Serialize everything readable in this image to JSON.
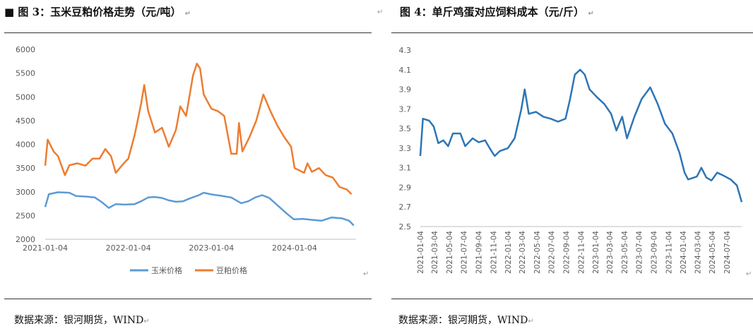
{
  "left_panel": {
    "title_prefix": "■",
    "title": "图 3：玉米豆粕价格走势（元/吨）",
    "source": "数据来源：银河期货，WIND",
    "paragraph_mark": "↵"
  },
  "right_panel": {
    "title": "图 4：单斤鸡蛋对应饲料成本（元/斤）",
    "source": "数据来源：银河期货，WIND",
    "paragraph_mark": "↵"
  },
  "chart_data": [
    {
      "type": "line",
      "title": "",
      "xlabel": "",
      "ylabel": "",
      "x_type": "date",
      "xlim": [
        "2021-01-04",
        "2024-09-30"
      ],
      "ylim": [
        2000,
        6000
      ],
      "x_tick_labels": [
        "2021-01-04",
        "2022-01-04",
        "2023-01-04",
        "2024-01-04"
      ],
      "y_tick_labels": [
        "2000",
        "2500",
        "3000",
        "3500",
        "4000",
        "4500",
        "5000",
        "5500",
        "6000"
      ],
      "grid": false,
      "legend": "bottom",
      "series": [
        {
          "name": "玉米价格",
          "color": "#5b9bd5",
          "points": [
            [
              "2021-01-04",
              2680
            ],
            [
              "2021-01-20",
              2950
            ],
            [
              "2021-03-01",
              2990
            ],
            [
              "2021-04-20",
              2980
            ],
            [
              "2021-05-20",
              2910
            ],
            [
              "2021-07-01",
              2900
            ],
            [
              "2021-08-10",
              2880
            ],
            [
              "2021-09-10",
              2780
            ],
            [
              "2021-10-10",
              2660
            ],
            [
              "2021-11-10",
              2740
            ],
            [
              "2021-12-20",
              2730
            ],
            [
              "2022-02-01",
              2740
            ],
            [
              "2022-03-01",
              2800
            ],
            [
              "2022-04-01",
              2880
            ],
            [
              "2022-05-01",
              2890
            ],
            [
              "2022-06-01",
              2870
            ],
            [
              "2022-07-01",
              2820
            ],
            [
              "2022-08-01",
              2790
            ],
            [
              "2022-09-01",
              2800
            ],
            [
              "2022-10-01",
              2860
            ],
            [
              "2022-11-10",
              2930
            ],
            [
              "2022-12-01",
              2980
            ],
            [
              "2023-01-10",
              2940
            ],
            [
              "2023-02-10",
              2920
            ],
            [
              "2023-04-01",
              2880
            ],
            [
              "2023-05-15",
              2760
            ],
            [
              "2023-06-15",
              2800
            ],
            [
              "2023-07-15",
              2880
            ],
            [
              "2023-08-15",
              2930
            ],
            [
              "2023-09-15",
              2870
            ],
            [
              "2023-10-20",
              2720
            ],
            [
              "2023-12-01",
              2540
            ],
            [
              "2024-01-01",
              2420
            ],
            [
              "2024-02-10",
              2430
            ],
            [
              "2024-03-15",
              2410
            ],
            [
              "2024-05-01",
              2390
            ],
            [
              "2024-06-15",
              2460
            ],
            [
              "2024-07-31",
              2440
            ],
            [
              "2024-08-31",
              2390
            ],
            [
              "2024-09-20",
              2290
            ]
          ]
        },
        {
          "name": "豆粕价格",
          "color": "#ed7d31",
          "points": [
            [
              "2021-01-04",
              3550
            ],
            [
              "2021-01-15",
              4100
            ],
            [
              "2021-02-10",
              3850
            ],
            [
              "2021-03-01",
              3750
            ],
            [
              "2021-04-01",
              3350
            ],
            [
              "2021-04-20",
              3560
            ],
            [
              "2021-05-25",
              3600
            ],
            [
              "2021-06-30",
              3550
            ],
            [
              "2021-07-31",
              3700
            ],
            [
              "2021-08-31",
              3700
            ],
            [
              "2021-09-25",
              3900
            ],
            [
              "2021-10-20",
              3750
            ],
            [
              "2021-11-10",
              3400
            ],
            [
              "2021-12-15",
              3600
            ],
            [
              "2022-01-04",
              3700
            ],
            [
              "2022-02-01",
              4200
            ],
            [
              "2022-03-01",
              4850
            ],
            [
              "2022-03-15",
              5250
            ],
            [
              "2022-04-01",
              4700
            ],
            [
              "2022-05-01",
              4250
            ],
            [
              "2022-06-01",
              4350
            ],
            [
              "2022-07-01",
              3950
            ],
            [
              "2022-08-01",
              4300
            ],
            [
              "2022-08-20",
              4800
            ],
            [
              "2022-09-15",
              4600
            ],
            [
              "2022-10-15",
              5450
            ],
            [
              "2022-11-01",
              5700
            ],
            [
              "2022-11-15",
              5600
            ],
            [
              "2022-12-01",
              5050
            ],
            [
              "2023-01-04",
              4750
            ],
            [
              "2023-02-01",
              4700
            ],
            [
              "2023-03-01",
              4600
            ],
            [
              "2023-04-01",
              3800
            ],
            [
              "2023-04-25",
              3800
            ],
            [
              "2023-05-05",
              4450
            ],
            [
              "2023-05-20",
              3850
            ],
            [
              "2023-06-20",
              4150
            ],
            [
              "2023-07-20",
              4500
            ],
            [
              "2023-08-20",
              5050
            ],
            [
              "2023-09-20",
              4700
            ],
            [
              "2023-10-20",
              4400
            ],
            [
              "2023-11-20",
              4150
            ],
            [
              "2023-12-20",
              3950
            ],
            [
              "2024-01-04",
              3500
            ],
            [
              "2024-02-15",
              3400
            ],
            [
              "2024-03-01",
              3600
            ],
            [
              "2024-03-20",
              3420
            ],
            [
              "2024-04-20",
              3500
            ],
            [
              "2024-05-20",
              3350
            ],
            [
              "2024-06-20",
              3300
            ],
            [
              "2024-07-20",
              3100
            ],
            [
              "2024-08-20",
              3050
            ],
            [
              "2024-09-10",
              2950
            ]
          ]
        }
      ]
    },
    {
      "type": "line",
      "title": "",
      "xlabel": "",
      "ylabel": "",
      "x_type": "date",
      "xlim": [
        "2021-01-04",
        "2024-09-04"
      ],
      "ylim": [
        2.5,
        4.3
      ],
      "x_tick_labels": [
        "2021-01-04",
        "2021-03-04",
        "2021-05-04",
        "2021-07-04",
        "2021-09-04",
        "2021-11-04",
        "2022-01-04",
        "2022-03-04",
        "2022-05-04",
        "2022-07-04",
        "2022-09-04",
        "2022-11-04",
        "2023-01-04",
        "2023-03-04",
        "2023-05-04",
        "2023-07-04",
        "2023-09-04",
        "2023-11-04",
        "2024-01-04",
        "2024-03-04",
        "2024-05-04",
        "2024-07-04"
      ],
      "y_tick_labels": [
        "2.5",
        "2.7",
        "2.9",
        "3.1",
        "3.3",
        "3.5",
        "3.7",
        "3.9",
        "4.1",
        "4.3"
      ],
      "grid": false,
      "legend": "none",
      "series": [
        {
          "color": "#2e75b6",
          "points": [
            [
              "2021-01-04",
              3.22
            ],
            [
              "2021-01-15",
              3.6
            ],
            [
              "2021-02-10",
              3.58
            ],
            [
              "2021-03-01",
              3.52
            ],
            [
              "2021-03-20",
              3.35
            ],
            [
              "2021-04-10",
              3.38
            ],
            [
              "2021-04-30",
              3.32
            ],
            [
              "2021-05-20",
              3.45
            ],
            [
              "2021-06-20",
              3.45
            ],
            [
              "2021-07-10",
              3.32
            ],
            [
              "2021-08-10",
              3.4
            ],
            [
              "2021-09-04",
              3.36
            ],
            [
              "2021-10-01",
              3.38
            ],
            [
              "2021-10-20",
              3.3
            ],
            [
              "2021-11-10",
              3.22
            ],
            [
              "2021-12-01",
              3.27
            ],
            [
              "2022-01-04",
              3.3
            ],
            [
              "2022-02-01",
              3.4
            ],
            [
              "2022-03-01",
              3.7
            ],
            [
              "2022-03-15",
              3.9
            ],
            [
              "2022-04-01",
              3.65
            ],
            [
              "2022-05-01",
              3.67
            ],
            [
              "2022-06-01",
              3.62
            ],
            [
              "2022-07-01",
              3.6
            ],
            [
              "2022-08-01",
              3.57
            ],
            [
              "2022-09-01",
              3.6
            ],
            [
              "2022-09-20",
              3.8
            ],
            [
              "2022-10-10",
              4.05
            ],
            [
              "2022-11-01",
              4.1
            ],
            [
              "2022-11-20",
              4.05
            ],
            [
              "2022-12-10",
              3.9
            ],
            [
              "2023-01-10",
              3.82
            ],
            [
              "2023-02-10",
              3.75
            ],
            [
              "2023-03-10",
              3.65
            ],
            [
              "2023-04-01",
              3.48
            ],
            [
              "2023-04-25",
              3.62
            ],
            [
              "2023-05-15",
              3.4
            ],
            [
              "2023-06-15",
              3.62
            ],
            [
              "2023-07-15",
              3.8
            ],
            [
              "2023-08-20",
              3.92
            ],
            [
              "2023-09-20",
              3.75
            ],
            [
              "2023-10-20",
              3.55
            ],
            [
              "2023-11-20",
              3.45
            ],
            [
              "2023-12-20",
              3.25
            ],
            [
              "2024-01-10",
              3.05
            ],
            [
              "2024-01-25",
              2.98
            ],
            [
              "2024-03-01",
              3.01
            ],
            [
              "2024-03-20",
              3.1
            ],
            [
              "2024-04-10",
              3.0
            ],
            [
              "2024-05-01",
              2.97
            ],
            [
              "2024-05-25",
              3.05
            ],
            [
              "2024-06-20",
              3.02
            ],
            [
              "2024-07-20",
              2.98
            ],
            [
              "2024-08-15",
              2.92
            ],
            [
              "2024-09-04",
              2.75
            ]
          ]
        }
      ]
    }
  ]
}
